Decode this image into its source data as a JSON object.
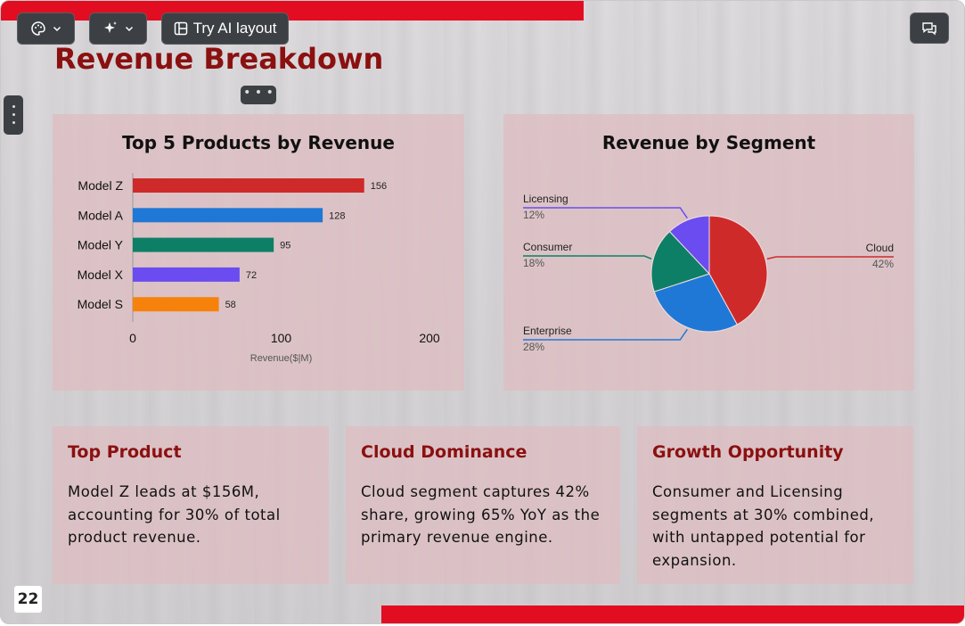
{
  "toolbar": {
    "theme_icon": "palette-icon",
    "ai_icon": "sparkle-icon",
    "ai_layout_label": "Try AI layout",
    "layout_icon": "layout-icon",
    "comment_icon": "comment-icon"
  },
  "slide": {
    "title": "Revenue Breakdown",
    "page_number": "22",
    "accent_color": "#e30d22",
    "title_color": "#8b1010"
  },
  "chart_data": [
    {
      "type": "bar",
      "orientation": "horizontal",
      "title": "Top 5 Products by Revenue",
      "categories": [
        "Model Z",
        "Model A",
        "Model Y",
        "Model X",
        "Model S"
      ],
      "values": [
        156,
        128,
        95,
        72,
        58
      ],
      "colors": [
        "#cf2a2a",
        "#1f78d6",
        "#0d7f66",
        "#6a4cf0",
        "#f6820c"
      ],
      "xlabel": "Revenue($|M)",
      "xlim": [
        0,
        200
      ],
      "xticks": [
        "0",
        "100",
        "200"
      ]
    },
    {
      "type": "pie",
      "title": "Revenue by Segment",
      "categories": [
        "Cloud",
        "Enterprise",
        "Consumer",
        "Licensing"
      ],
      "values": [
        42,
        28,
        18,
        12
      ],
      "labels": [
        "42%",
        "28%",
        "18%",
        "12%"
      ],
      "colors": [
        "#cf2a2a",
        "#1f78d6",
        "#0d7f66",
        "#6a4cf0"
      ]
    }
  ],
  "insights": [
    {
      "title": "Top Product",
      "text": "Model Z leads at $156M, accounting for 30% of total product revenue."
    },
    {
      "title": "Cloud Dominance",
      "text": "Cloud segment captures 42% share, growing 65% YoY as the primary revenue engine."
    },
    {
      "title": "Growth Opportunity",
      "text": "Consumer and Licensing segments at 30% combined, with untapped potential for expansion."
    }
  ]
}
